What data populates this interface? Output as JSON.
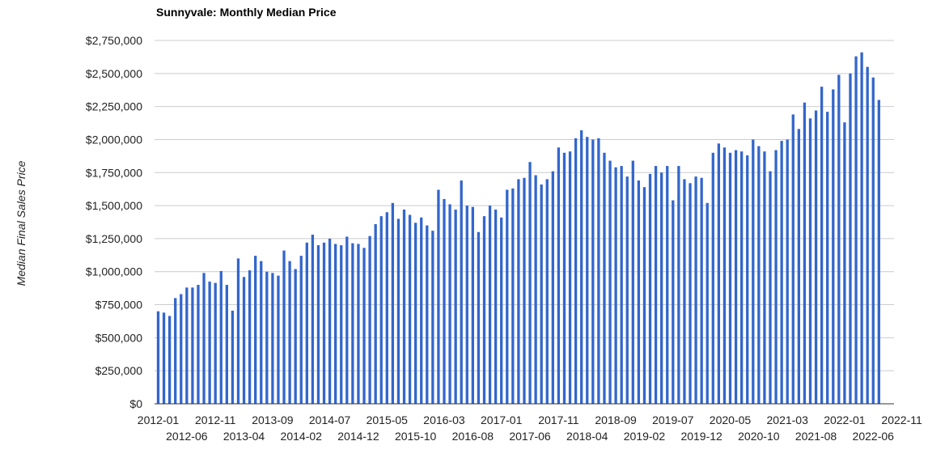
{
  "chart_data": {
    "type": "bar",
    "title": "Sunnyvale: Monthly Median Price",
    "xlabel": "",
    "ylabel": "Median Final Sales Price",
    "ylim": [
      0,
      2750000
    ],
    "y_ticks": [
      0,
      250000,
      500000,
      750000,
      1000000,
      1250000,
      1500000,
      1750000,
      2000000,
      2250000,
      2500000,
      2750000
    ],
    "y_tick_labels": [
      "$0",
      "$250,000",
      "$500,000",
      "$750,000",
      "$1,000,000",
      "$1,250,000",
      "$1,500,000",
      "$1,750,000",
      "$2,000,000",
      "$2,250,000",
      "$2,500,000",
      "$2,750,000"
    ],
    "x_tick_labels_top": [
      "2012-01",
      "2012-11",
      "2013-09",
      "2014-07",
      "2015-05",
      "2016-03",
      "2017-01",
      "2017-11",
      "2018-09",
      "2019-07",
      "2020-05",
      "2021-03",
      "2022-01",
      "2022-11"
    ],
    "x_tick_labels_bottom": [
      "2012-06",
      "2013-04",
      "2014-02",
      "2014-12",
      "2015-10",
      "2016-08",
      "2017-06",
      "2018-04",
      "2019-02",
      "2019-12",
      "2020-10",
      "2021-08",
      "2022-06"
    ],
    "grid": true,
    "legend": "none",
    "bar_color": "#3366cc",
    "start_month": "2012-01",
    "series": [
      {
        "values": [
          700000,
          690000,
          665000,
          800000,
          830000,
          880000,
          880000,
          900000,
          990000,
          925000,
          915000,
          1005000,
          900000,
          705000,
          1100000,
          960000,
          1010000,
          1120000,
          1080000,
          1000000,
          990000,
          970000,
          1160000,
          1080000,
          1020000,
          1120000,
          1220000,
          1280000,
          1200000,
          1220000,
          1250000,
          1210000,
          1200000,
          1265000,
          1215000,
          1210000,
          1180000,
          1270000,
          1360000,
          1420000,
          1450000,
          1520000,
          1400000,
          1470000,
          1430000,
          1370000,
          1410000,
          1350000,
          1310000,
          1620000,
          1550000,
          1510000,
          1470000,
          1690000,
          1500000,
          1490000,
          1300000,
          1420000,
          1500000,
          1470000,
          1410000,
          1620000,
          1630000,
          1700000,
          1710000,
          1830000,
          1730000,
          1660000,
          1700000,
          1760000,
          1940000,
          1900000,
          1910000,
          2010000,
          2070000,
          2020000,
          2000000,
          2010000,
          1900000,
          1840000,
          1790000,
          1800000,
          1720000,
          1840000,
          1690000,
          1640000,
          1740000,
          1800000,
          1750000,
          1800000,
          1540000,
          1800000,
          1700000,
          1670000,
          1720000,
          1710000,
          1520000,
          1900000,
          1970000,
          1940000,
          1900000,
          1920000,
          1910000,
          1880000,
          2000000,
          1950000,
          1910000,
          1760000,
          1920000,
          1990000,
          2000000,
          2190000,
          2080000,
          2280000,
          2160000,
          2220000,
          2400000,
          2210000,
          2380000,
          2490000,
          2130000,
          2500000,
          2630000,
          2660000,
          2550000,
          2470000,
          2300000
        ]
      }
    ]
  }
}
